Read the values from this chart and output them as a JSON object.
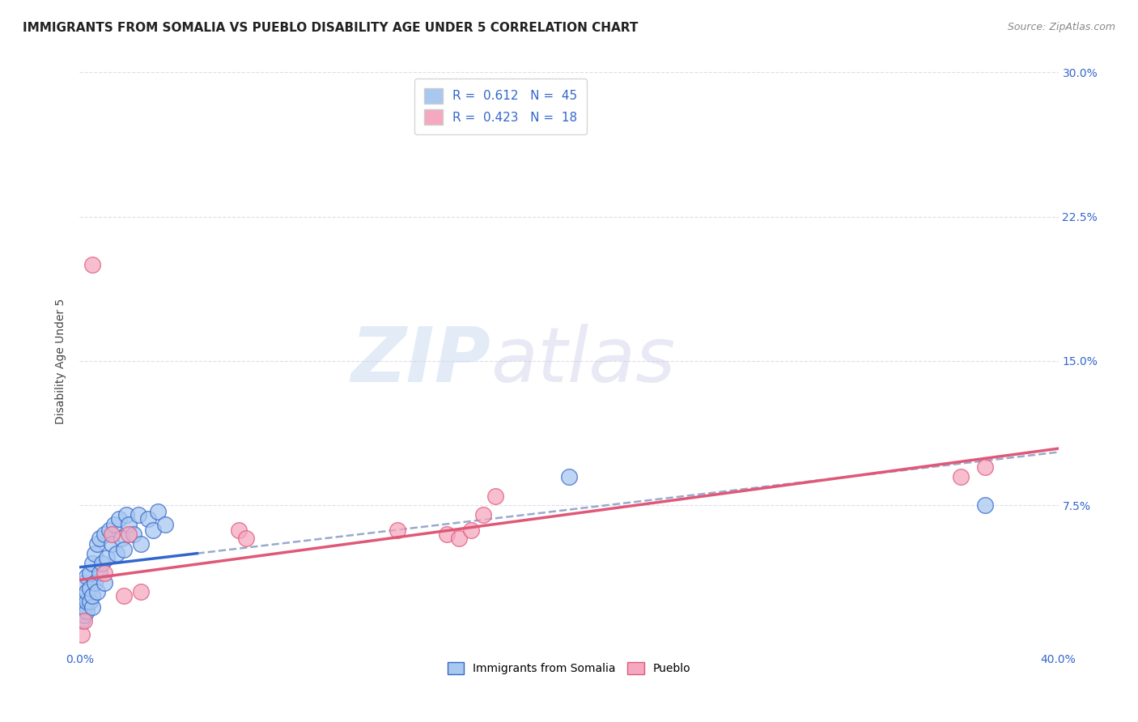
{
  "title": "IMMIGRANTS FROM SOMALIA VS PUEBLO DISABILITY AGE UNDER 5 CORRELATION CHART",
  "source": "Source: ZipAtlas.com",
  "ylabel": "Disability Age Under 5",
  "xlim": [
    0.0,
    0.4
  ],
  "ylim": [
    0.0,
    0.3
  ],
  "xticks": [
    0.0,
    0.1,
    0.2,
    0.3,
    0.4
  ],
  "yticks": [
    0.0,
    0.075,
    0.15,
    0.225,
    0.3
  ],
  "ytick_labels": [
    "",
    "7.5%",
    "15.0%",
    "22.5%",
    "30.0%"
  ],
  "xtick_labels": [
    "0.0%",
    "",
    "",
    "",
    "40.0%"
  ],
  "series1_label": "Immigrants from Somalia",
  "series2_label": "Pueblo",
  "R1": 0.612,
  "N1": 45,
  "R2": 0.423,
  "N2": 18,
  "color1": "#A8C8F0",
  "color2": "#F5A8C0",
  "line1_color": "#3366CC",
  "line2_color": "#E05878",
  "dashed_line_color": "#99AACC",
  "somalia_x": [
    0.001,
    0.001,
    0.001,
    0.002,
    0.002,
    0.002,
    0.002,
    0.003,
    0.003,
    0.003,
    0.003,
    0.004,
    0.004,
    0.004,
    0.005,
    0.005,
    0.005,
    0.006,
    0.006,
    0.007,
    0.007,
    0.008,
    0.008,
    0.009,
    0.01,
    0.01,
    0.011,
    0.012,
    0.013,
    0.014,
    0.015,
    0.016,
    0.017,
    0.018,
    0.019,
    0.02,
    0.022,
    0.024,
    0.025,
    0.028,
    0.03,
    0.032,
    0.035,
    0.2,
    0.37
  ],
  "somalia_y": [
    0.015,
    0.02,
    0.025,
    0.018,
    0.022,
    0.028,
    0.035,
    0.02,
    0.025,
    0.03,
    0.038,
    0.025,
    0.032,
    0.04,
    0.022,
    0.028,
    0.045,
    0.035,
    0.05,
    0.03,
    0.055,
    0.04,
    0.058,
    0.045,
    0.035,
    0.06,
    0.048,
    0.062,
    0.055,
    0.065,
    0.05,
    0.068,
    0.058,
    0.052,
    0.07,
    0.065,
    0.06,
    0.07,
    0.055,
    0.068,
    0.062,
    0.072,
    0.065,
    0.09,
    0.075
  ],
  "pueblo_x": [
    0.001,
    0.002,
    0.005,
    0.01,
    0.013,
    0.018,
    0.02,
    0.025,
    0.065,
    0.068,
    0.13,
    0.15,
    0.155,
    0.16,
    0.165,
    0.17,
    0.36,
    0.37
  ],
  "pueblo_y": [
    0.008,
    0.015,
    0.2,
    0.04,
    0.06,
    0.028,
    0.06,
    0.03,
    0.062,
    0.058,
    0.062,
    0.06,
    0.058,
    0.062,
    0.07,
    0.08,
    0.09,
    0.095
  ],
  "watermark_zip": "ZIP",
  "watermark_atlas": "atlas",
  "background_color": "#FFFFFF",
  "grid_color": "#DDDDEE",
  "title_fontsize": 11,
  "axis_label_fontsize": 10,
  "tick_fontsize": 10,
  "legend_fontsize": 11
}
